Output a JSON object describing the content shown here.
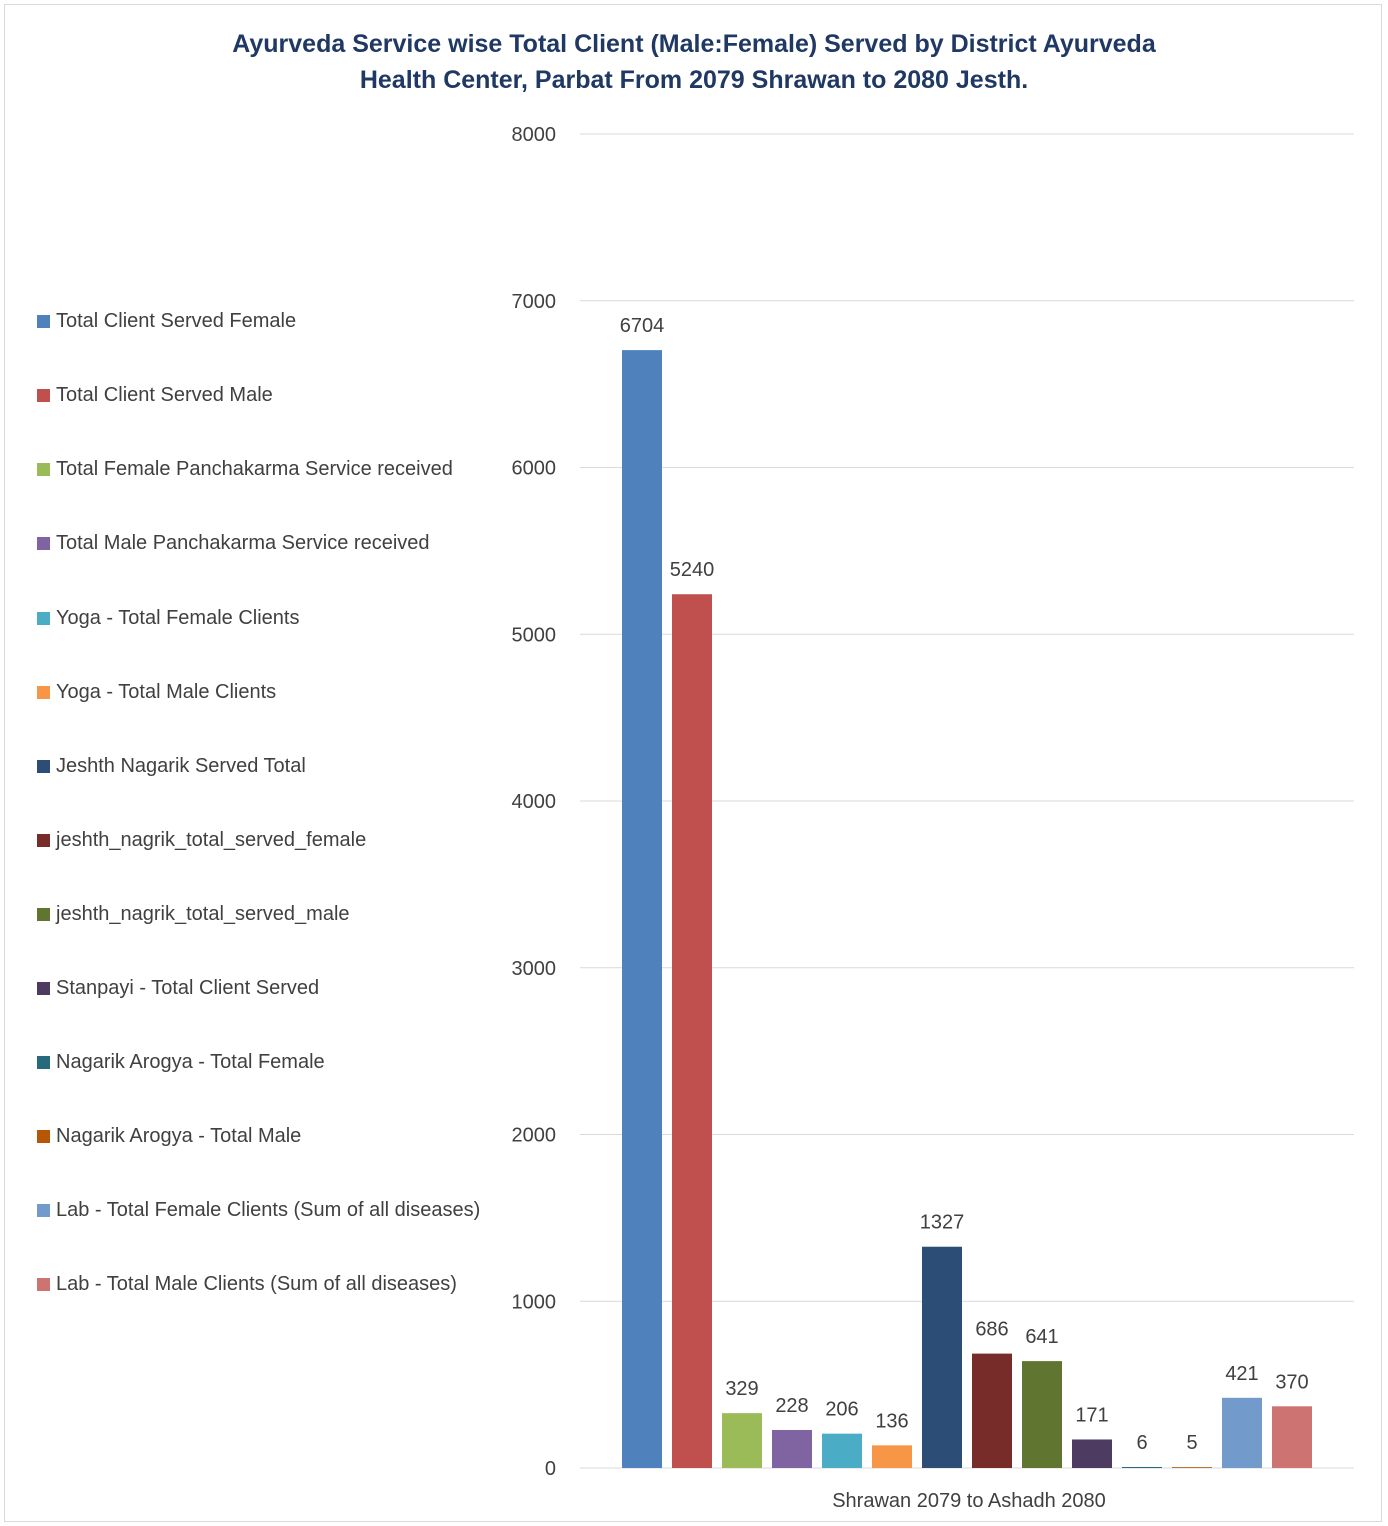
{
  "chart_data": {
    "type": "bar",
    "title_line1": "Ayurveda Service wise Total Client (Male:Female) Served by District Ayurveda",
    "title_line2": "Health Center, Parbat From 2079 Shrawan to 2080 Jesth.",
    "categories": [
      "Shrawan 2079 to Ashadh 2080"
    ],
    "xlabel": "",
    "ylabel": "",
    "ylim": [
      0,
      8000
    ],
    "yticks": [
      0,
      1000,
      2000,
      3000,
      4000,
      5000,
      6000,
      7000,
      8000
    ],
    "grid": true,
    "legend_position": "left",
    "series": [
      {
        "name": "Total Client Served Female",
        "values": [
          6704
        ],
        "color": "#4f81bd"
      },
      {
        "name": "Total Client Served Male",
        "values": [
          5240
        ],
        "color": "#c0504d"
      },
      {
        "name": "Total Female Panchakarma Service received",
        "values": [
          329
        ],
        "color": "#9bbb59"
      },
      {
        "name": "Total Male Panchakarma Service received",
        "values": [
          228
        ],
        "color": "#8064a2"
      },
      {
        "name": "Yoga - Total Female Clients",
        "values": [
          206
        ],
        "color": "#4bacc6"
      },
      {
        "name": "Yoga - Total Male Clients",
        "values": [
          136
        ],
        "color": "#f79646"
      },
      {
        "name": "Jeshth Nagarik Served Total",
        "values": [
          1327
        ],
        "color": "#2c4d75"
      },
      {
        "name": "jeshth_nagrik_total_served_female",
        "values": [
          686
        ],
        "color": "#772c2a"
      },
      {
        "name": "jeshth_nagrik_total_served_male",
        "values": [
          641
        ],
        "color": "#5f7530"
      },
      {
        "name": "Stanpayi - Total Client Served",
        "values": [
          171
        ],
        "color": "#4d3b62"
      },
      {
        "name": "Nagarik Arogya - Total Female",
        "values": [
          6
        ],
        "color": "#276a7c"
      },
      {
        "name": "Nagarik Arogya - Total Male",
        "values": [
          5
        ],
        "color": "#b65708"
      },
      {
        "name": "Lab - Total Female Clients (Sum of all diseases)",
        "values": [
          421
        ],
        "color": "#729aca"
      },
      {
        "name": "Lab - Total Male Clients (Sum of all diseases)",
        "values": [
          370
        ],
        "color": "#cd7371"
      }
    ]
  }
}
